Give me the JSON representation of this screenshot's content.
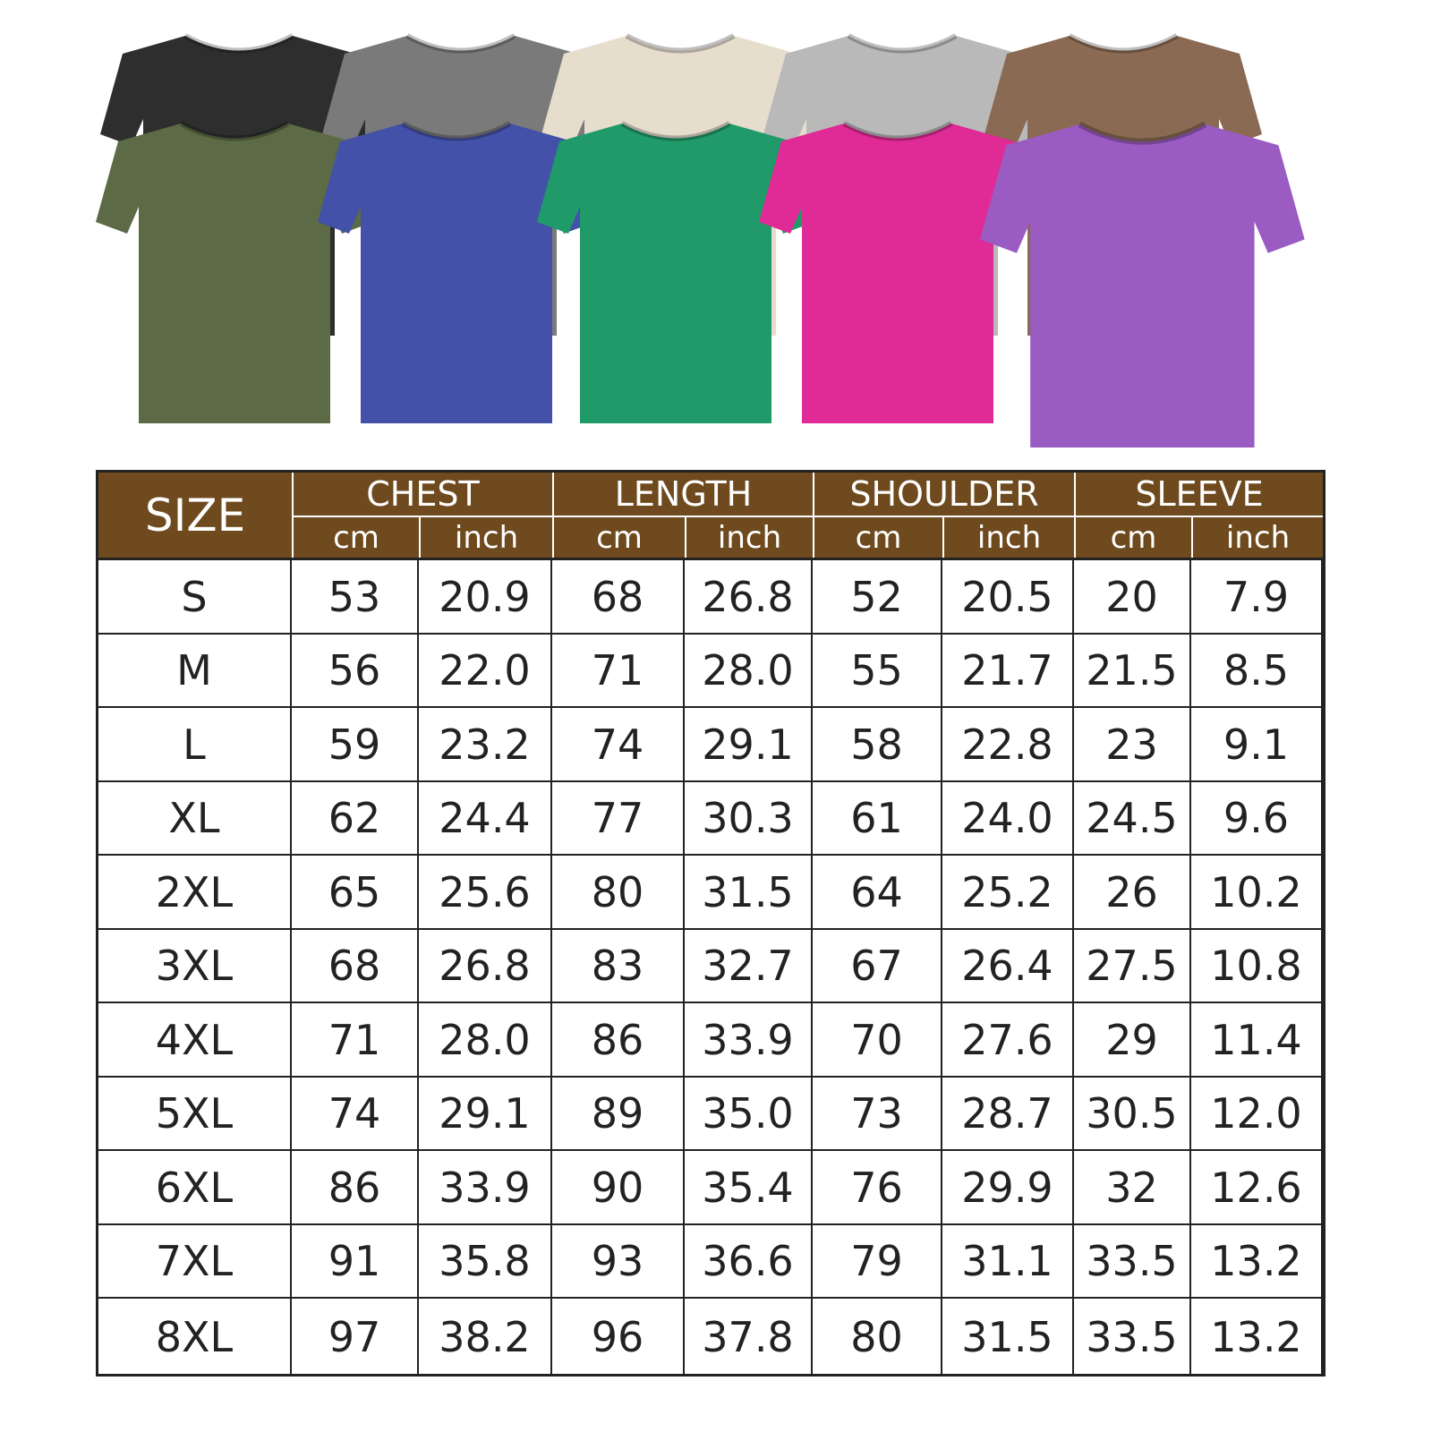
{
  "table": {
    "headers": [
      "SIZE",
      "CHEST",
      "LENGTH",
      "SHOULDER",
      "SLEEVE"
    ],
    "units": [
      "cm",
      "inch",
      "cm",
      "inch",
      "cm",
      "inch",
      "cm",
      "inch"
    ],
    "rows": [
      [
        "S",
        "53",
        "20.9",
        "68",
        "26.8",
        "52",
        "20.5",
        "20",
        "7.9"
      ],
      [
        "M",
        "56",
        "22.0",
        "71",
        "28.0",
        "55",
        "21.7",
        "21.5",
        "8.5"
      ],
      [
        "L",
        "59",
        "23.2",
        "74",
        "29.1",
        "58",
        "22.8",
        "23",
        "9.1"
      ],
      [
        "XL",
        "62",
        "24.4",
        "77",
        "30.3",
        "61",
        "24.0",
        "24.5",
        "9.6"
      ],
      [
        "2XL",
        "65",
        "25.6",
        "80",
        "31.5",
        "64",
        "25.2",
        "26",
        "10.2"
      ],
      [
        "3XL",
        "68",
        "26.8",
        "83",
        "32.7",
        "67",
        "26.4",
        "27.5",
        "10.8"
      ],
      [
        "4XL",
        "71",
        "28.0",
        "86",
        "33.9",
        "70",
        "27.6",
        "29",
        "11.4"
      ],
      [
        "5XL",
        "74",
        "29.1",
        "89",
        "35.0",
        "73",
        "28.7",
        "30.5",
        "12.0"
      ],
      [
        "6XL",
        "86",
        "33.9",
        "90",
        "35.4",
        "76",
        "29.9",
        "32",
        "12.6"
      ],
      [
        "7XL",
        "91",
        "35.8",
        "93",
        "36.6",
        "79",
        "31.1",
        "33.5",
        "13.2"
      ],
      [
        "8XL",
        "97",
        "38.2",
        "96",
        "37.8",
        "80",
        "31.5",
        "33.5",
        "13.2"
      ]
    ]
  }
}
